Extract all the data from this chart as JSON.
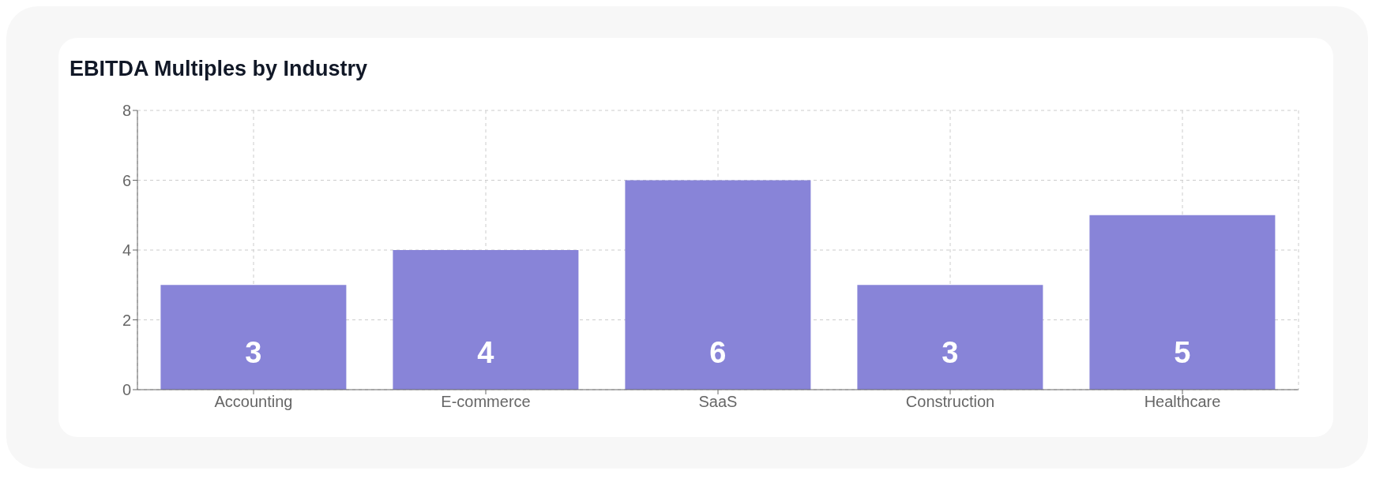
{
  "chart_data": {
    "type": "bar",
    "title": "EBITDA Multiples by Industry",
    "categories": [
      "Accounting",
      "E-commerce",
      "SaaS",
      "Construction",
      "Healthcare"
    ],
    "values": [
      3,
      4,
      6,
      3,
      5
    ],
    "color": "#8884d8",
    "ylim": [
      0,
      8
    ],
    "yticks": [
      0,
      2,
      4,
      6,
      8
    ],
    "grid": true,
    "data_labels": true
  }
}
